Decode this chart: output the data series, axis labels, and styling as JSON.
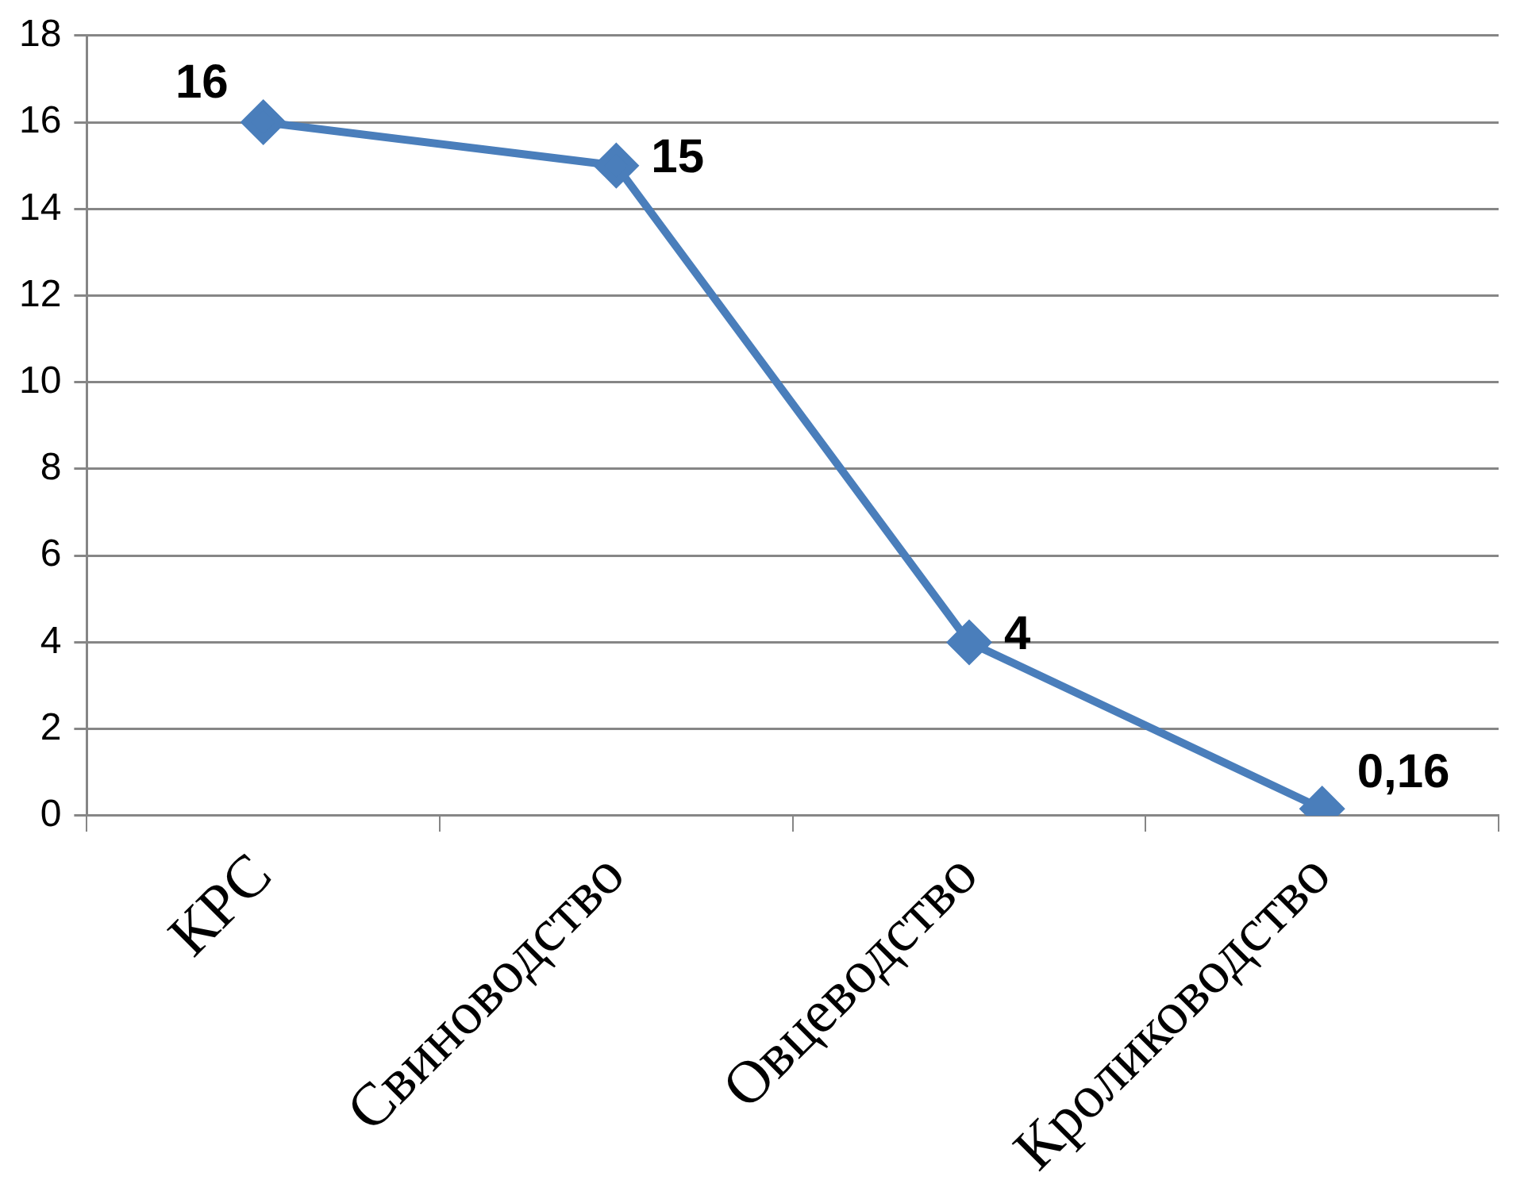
{
  "chart_data": {
    "type": "line",
    "categories": [
      "КРС",
      "Свиноводство",
      "Овцеводство",
      "Кролиководство"
    ],
    "series": [
      {
        "color": "#4a7ebb",
        "values": [
          16,
          15,
          4,
          0.16
        ],
        "value_labels": [
          "16",
          "15",
          "4",
          "0,16"
        ]
      }
    ],
    "ylim": [
      0,
      18
    ],
    "yticks": [
      0,
      2,
      4,
      6,
      8,
      10,
      12,
      14,
      16,
      18
    ],
    "grid": "y",
    "legend": false,
    "marker": "diamond",
    "line_style": "solid"
  }
}
